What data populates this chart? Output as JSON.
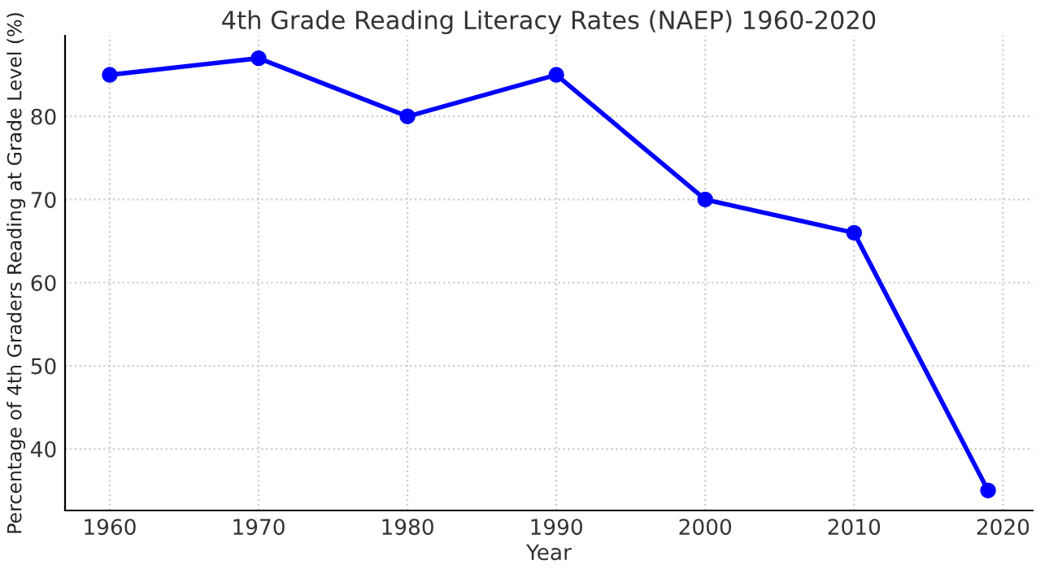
{
  "chart_data": {
    "type": "line",
    "title": "4th Grade Reading Literacy Rates (NAEP) 1960-2020",
    "xlabel": "Year",
    "ylabel": "Percentage of 4th Graders Reading at Grade Level (%)",
    "x": [
      1960,
      1970,
      1980,
      1990,
      2000,
      2010,
      2019
    ],
    "series": [
      {
        "color": "#0000ff",
        "values": [
          85,
          87,
          80,
          85,
          70,
          66,
          35
        ]
      }
    ],
    "xlim": [
      1957,
      2022
    ],
    "xticks": [
      1960,
      1970,
      1980,
      1990,
      2000,
      2010,
      2020
    ],
    "ylim": [
      32.6,
      89.7
    ],
    "yticks": [
      40,
      50,
      60,
      70,
      80
    ],
    "grid": true,
    "marker": "circle",
    "line_style": "solid"
  }
}
